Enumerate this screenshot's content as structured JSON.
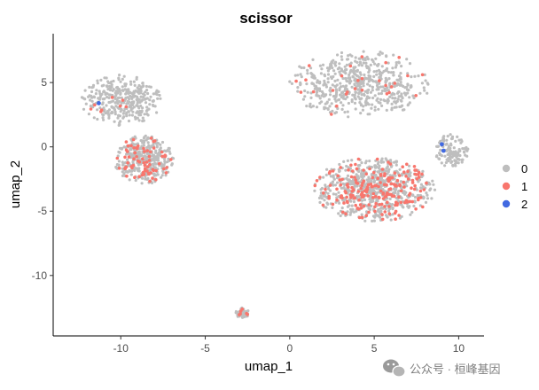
{
  "chart_data": {
    "type": "scatter",
    "title": "scissor",
    "xlabel": "umap_1",
    "ylabel": "umap_2",
    "xlim": [
      -14,
      11.5
    ],
    "ylim": [
      -14.7,
      8.8
    ],
    "xticks": [
      -10,
      -5,
      0,
      5,
      10
    ],
    "yticks": [
      5,
      0,
      -5,
      -10
    ],
    "grid": false,
    "legend": {
      "placement": "right",
      "entries": [
        {
          "label": "0",
          "color": "#BEBEBE"
        },
        {
          "label": "1",
          "color": "#F8766D"
        },
        {
          "label": "2",
          "color": "#4169E1"
        }
      ]
    },
    "clusters": [
      {
        "name": "upper-right-island",
        "cx": 4.1,
        "cy": 4.9,
        "rx": 4.2,
        "ry": 2.6,
        "grey": 560,
        "red": 28
      },
      {
        "name": "right-tip",
        "cx": 9.6,
        "cy": -0.3,
        "rx": 1.0,
        "ry": 1.3,
        "grey": 120,
        "red": 0
      },
      {
        "name": "right-blob",
        "cx": 5.0,
        "cy": -3.3,
        "rx": 3.6,
        "ry": 2.5,
        "grey": 640,
        "red": 210
      },
      {
        "name": "left-arc",
        "cx": -10.0,
        "cy": 3.6,
        "rx": 2.4,
        "ry": 2.0,
        "grey": 330,
        "red": 8
      },
      {
        "name": "left-lower",
        "cx": -8.6,
        "cy": -1.0,
        "rx": 1.8,
        "ry": 1.9,
        "grey": 360,
        "red": 70
      },
      {
        "name": "bottom-dot",
        "cx": -2.8,
        "cy": -12.9,
        "rx": 0.45,
        "ry": 0.45,
        "grey": 45,
        "red": 6
      }
    ],
    "series": [
      {
        "name": "2",
        "points": [
          [
            -11.3,
            3.4
          ],
          [
            9.0,
            0.2
          ],
          [
            9.1,
            -0.3
          ]
        ]
      }
    ]
  },
  "watermark": {
    "text": "公众号 · 桓峰基因"
  }
}
